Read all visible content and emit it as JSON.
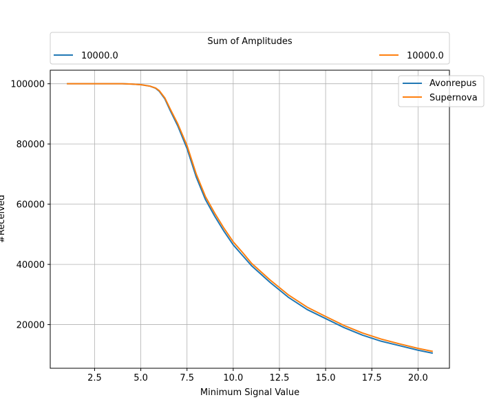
{
  "chart_data": {
    "type": "line",
    "xlabel": "Minimum Signal Value",
    "ylabel": "#Received",
    "xlim": [
      0.1,
      21.7
    ],
    "ylim": [
      5500,
      104500
    ],
    "x_ticks": [
      "2.5",
      "5.0",
      "7.5",
      "10.0",
      "12.5",
      "15.0",
      "17.5",
      "20.0"
    ],
    "y_ticks": [
      "20000",
      "40000",
      "60000",
      "80000",
      "100000"
    ],
    "grid": true,
    "top_legend": {
      "title": "Sum of Amplitudes",
      "placement": "above-plot",
      "entries": [
        {
          "label": "10000.0",
          "color": "#1f77b4"
        },
        {
          "label": "10000.0",
          "color": "#ff7f0e"
        }
      ]
    },
    "series_legend_placement": "upper-right",
    "series": [
      {
        "name": "Avonrepus",
        "color": "#1f77b4",
        "x": [
          1.0,
          2.0,
          3.0,
          4.0,
          4.5,
          5.0,
          5.5,
          5.8,
          6.0,
          6.3,
          6.6,
          7.0,
          7.5,
          8.0,
          8.5,
          9.0,
          9.5,
          10.0,
          10.5,
          11.0,
          12.0,
          12.5,
          13.0,
          14.0,
          15.0,
          16.0,
          17.0,
          18.0,
          19.0,
          20.0,
          20.8
        ],
        "y": [
          100000,
          100000,
          100000,
          100000,
          99900,
          99700,
          99200,
          98500,
          97500,
          95000,
          91000,
          86000,
          78500,
          69000,
          61500,
          56000,
          51000,
          46500,
          43000,
          39500,
          34000,
          31500,
          29000,
          25000,
          22000,
          19000,
          16500,
          14500,
          13000,
          11500,
          10500
        ]
      },
      {
        "name": "Supernova",
        "color": "#ff7f0e",
        "x": [
          1.0,
          2.0,
          3.0,
          4.0,
          4.5,
          5.0,
          5.5,
          5.8,
          6.0,
          6.3,
          6.6,
          7.0,
          7.5,
          8.0,
          8.5,
          9.0,
          9.5,
          10.0,
          10.5,
          11.0,
          12.0,
          12.5,
          13.0,
          14.0,
          15.0,
          16.0,
          17.0,
          18.0,
          19.0,
          20.0,
          20.8
        ],
        "y": [
          100000,
          100000,
          100000,
          100000,
          99900,
          99700,
          99200,
          98600,
          97700,
          95300,
          91500,
          86700,
          79500,
          70000,
          62500,
          57000,
          52000,
          47500,
          44000,
          40300,
          34800,
          32300,
          29800,
          25800,
          22700,
          19700,
          17200,
          15200,
          13600,
          12100,
          11100
        ]
      }
    ]
  }
}
